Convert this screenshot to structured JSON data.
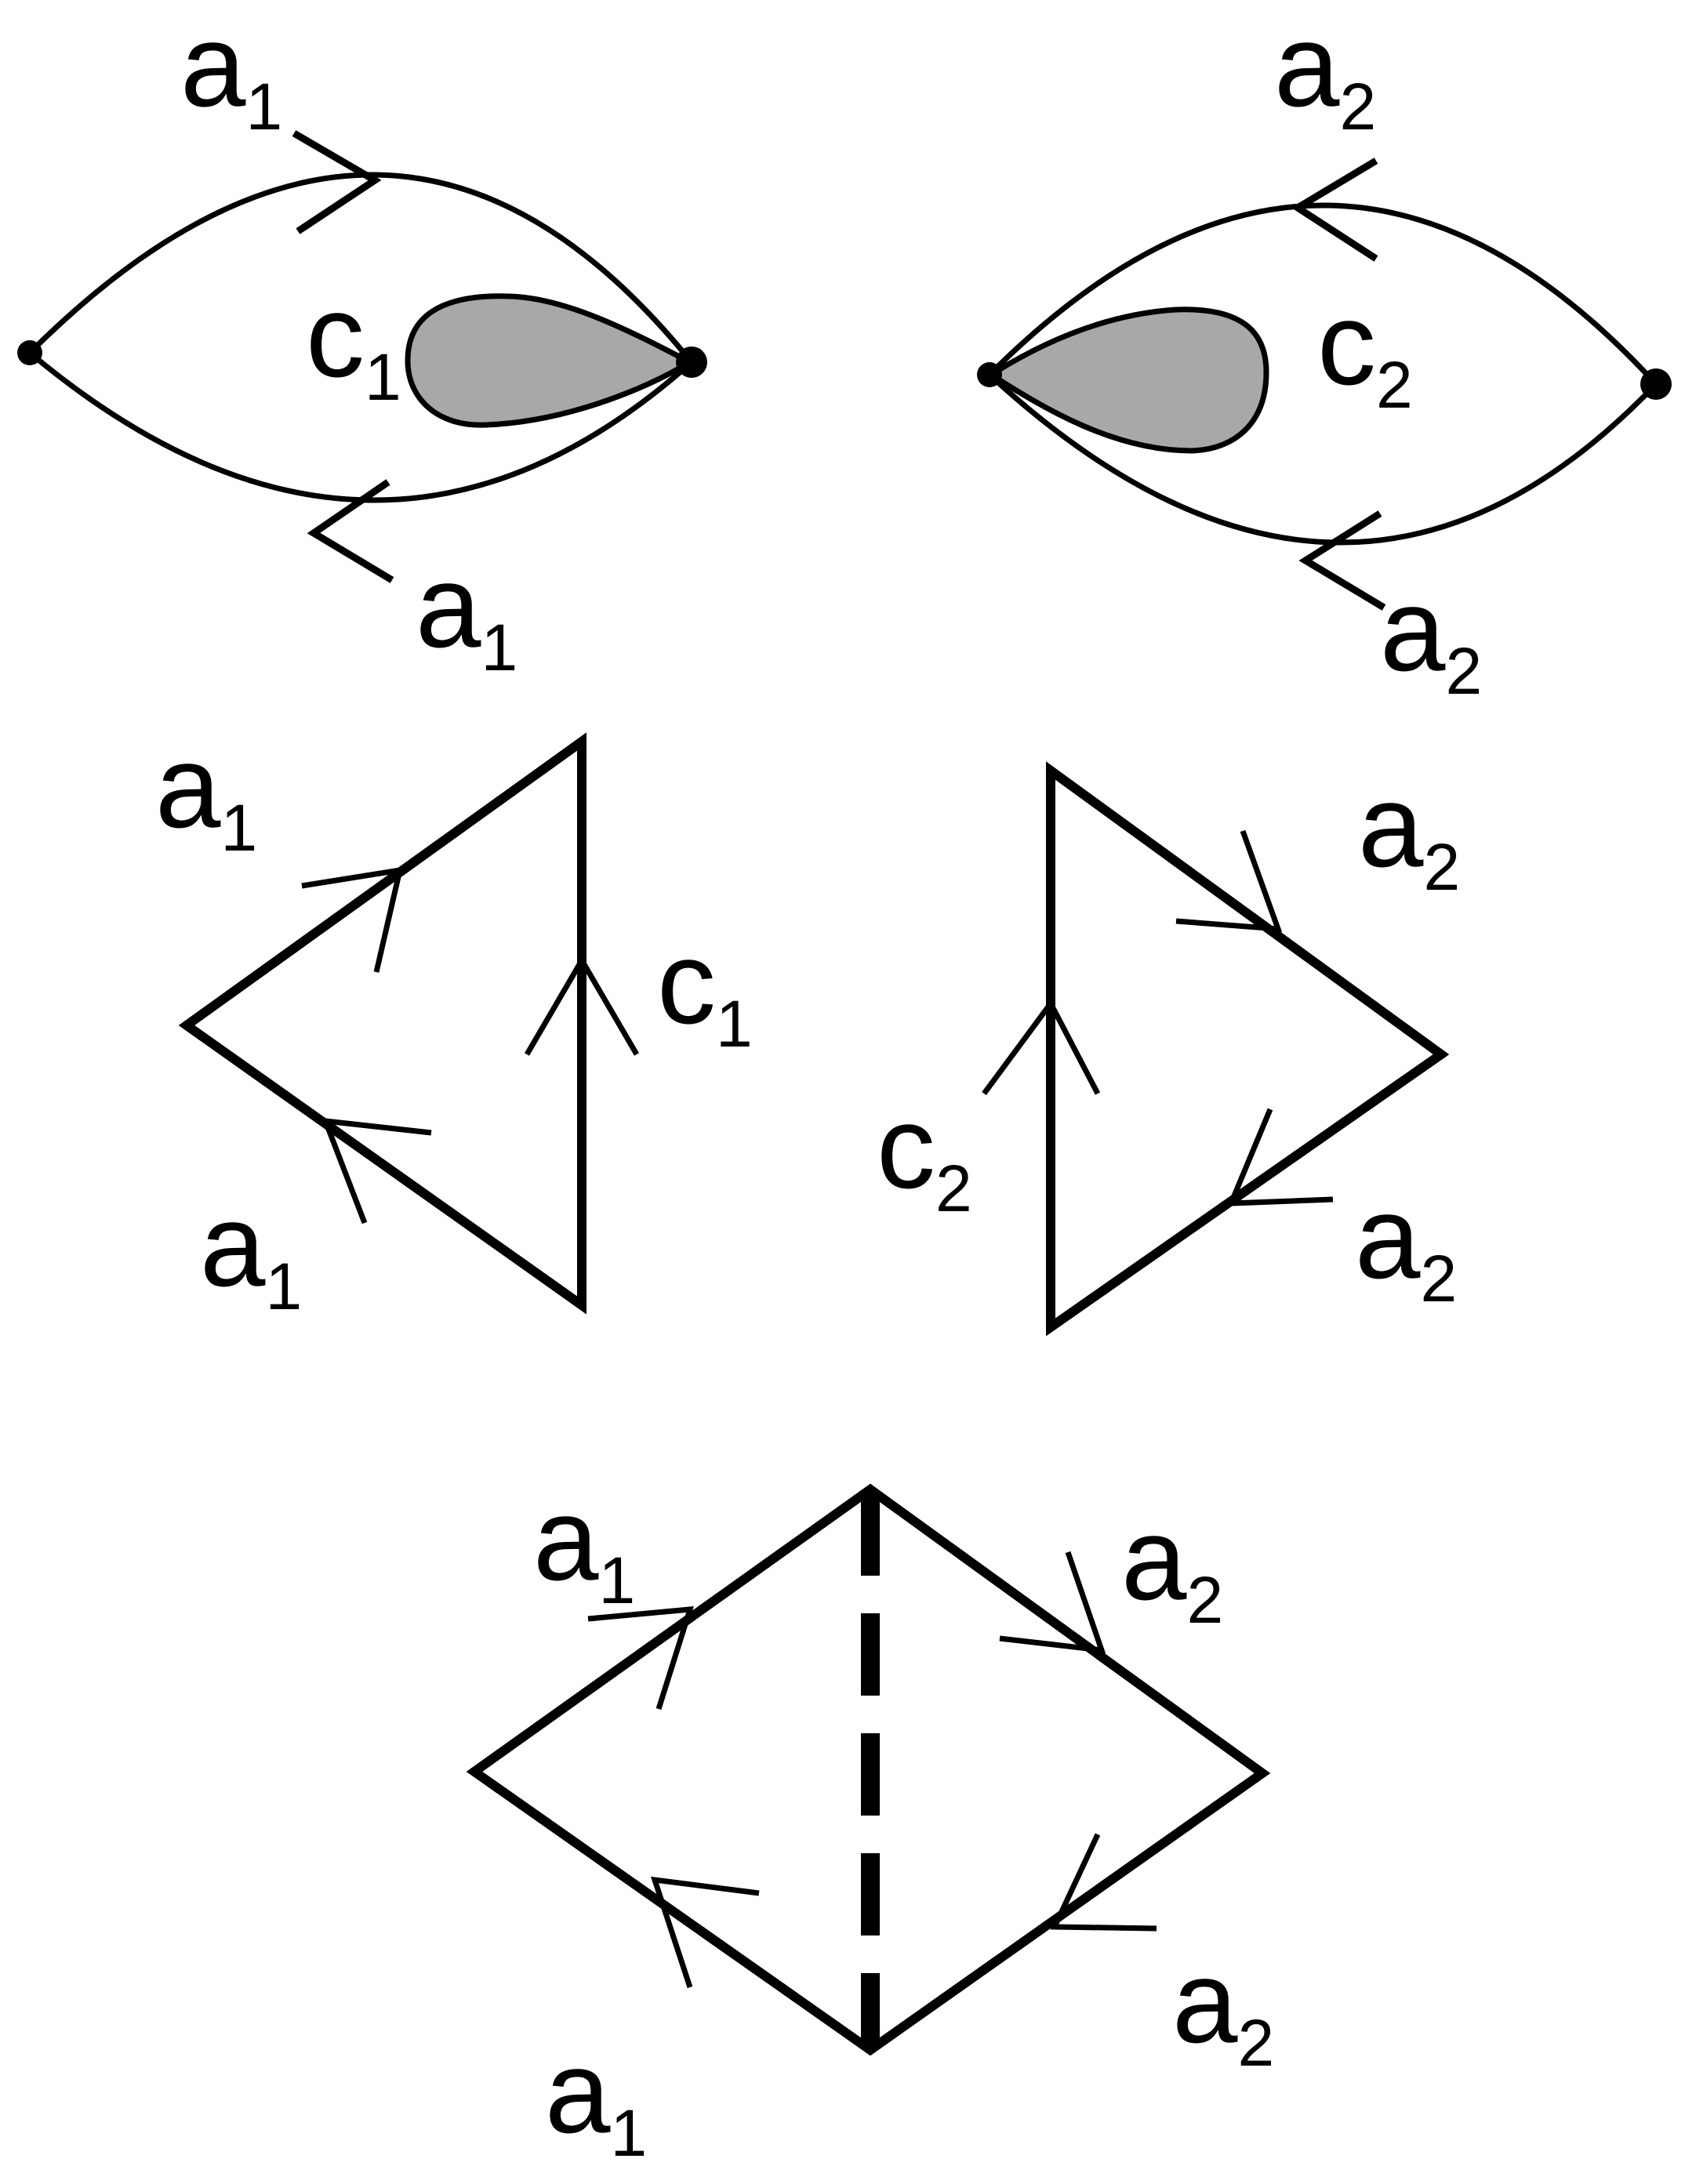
{
  "labels": {
    "a": "a",
    "c": "c",
    "one": "1",
    "two": "2"
  },
  "colors": {
    "stroke": "#000000",
    "hole_fill": "#a8a8a8",
    "background": "#ffffff"
  }
}
